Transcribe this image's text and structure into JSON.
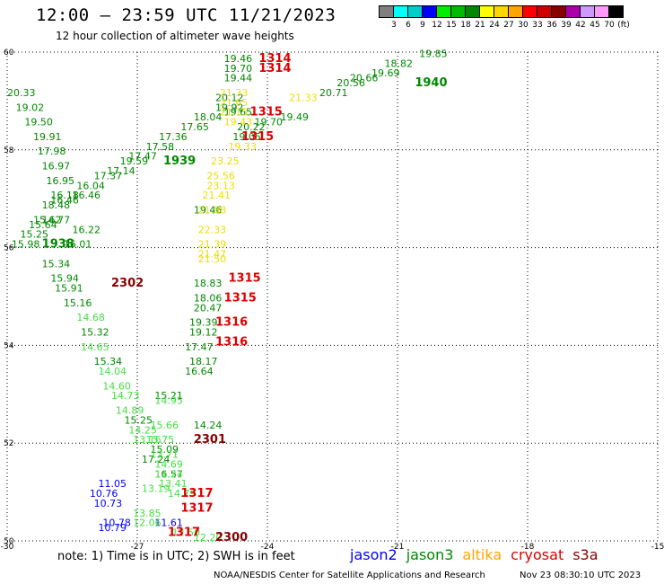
{
  "title": "12:00 — 23:59 UTC 11/21/2023",
  "subtitle": "12 hour collection of altimeter wave heights",
  "legend": {
    "colors": [
      "#7f7f7f",
      "#00ffff",
      "#00cccc",
      "#0000ff",
      "#00ee00",
      "#00bb00",
      "#008800",
      "#ffff00",
      "#ffd700",
      "#ffa500",
      "#ff0000",
      "#cc0000",
      "#880000",
      "#aa00aa",
      "#cc99ff",
      "#ff99ff",
      "#000000"
    ],
    "labels": [
      "3",
      "6",
      "9",
      "12",
      "15",
      "18",
      "21",
      "24",
      "27",
      "30",
      "33",
      "36",
      "39",
      "42",
      "45",
      "70",
      "(ft)"
    ]
  },
  "note": "note: 1) Time is in UTC; 2) SWH is in feet",
  "missions": [
    {
      "name": "jason2",
      "color": "#0000ff"
    },
    {
      "name": "jason3",
      "color": "#008800"
    },
    {
      "name": "altika",
      "color": "#ffa500"
    },
    {
      "name": "cryosat",
      "color": "#dd0000"
    },
    {
      "name": "s3a",
      "color": "#880000"
    }
  ],
  "credit": "NOAA/NESDIS Center for Satellite Applications and Research",
  "timestamp": "Nov 23 08:30:10 UTC 2023",
  "chart_data": {
    "type": "scatter",
    "xlim": [
      -30,
      -15
    ],
    "ylim": [
      50,
      60
    ],
    "xticks": [
      "-30",
      "-27",
      "-24",
      "-21",
      "-18",
      "-15"
    ],
    "yticks": [
      "50",
      "52",
      "54",
      "56",
      "58",
      "60"
    ],
    "grid": true,
    "wave_labels": [
      {
        "lon": -27.9,
        "lat": 51.1,
        "text": "11.05",
        "color": "#0000ff"
      },
      {
        "lon": -28.1,
        "lat": 50.9,
        "text": "10.76",
        "color": "#0000ff"
      },
      {
        "lon": -28.0,
        "lat": 50.7,
        "text": "10.73",
        "color": "#0000ff"
      },
      {
        "lon": -27.8,
        "lat": 50.3,
        "text": "10.78",
        "color": "#0000ff"
      },
      {
        "lon": -27.9,
        "lat": 50.2,
        "text": "10.79",
        "color": "#0000ff"
      },
      {
        "lon": -26.6,
        "lat": 50.3,
        "text": "11.61",
        "color": "#0000ff"
      },
      {
        "lon": -30.0,
        "lat": 59.1,
        "text": "20.33",
        "color": "#008800"
      },
      {
        "lon": -29.8,
        "lat": 58.8,
        "text": "19.02",
        "color": "#008800"
      },
      {
        "lon": -29.6,
        "lat": 58.5,
        "text": "19.50",
        "color": "#008800"
      },
      {
        "lon": -29.4,
        "lat": 58.2,
        "text": "19.91",
        "color": "#008800"
      },
      {
        "lon": -29.3,
        "lat": 57.9,
        "text": "17.98",
        "color": "#008800"
      },
      {
        "lon": -29.2,
        "lat": 57.6,
        "text": "16.97",
        "color": "#008800"
      },
      {
        "lon": -29.1,
        "lat": 57.3,
        "text": "16.95",
        "color": "#008800"
      },
      {
        "lon": -29.0,
        "lat": 57.0,
        "text": "16.18",
        "color": "#008800"
      },
      {
        "lon": -28.5,
        "lat": 57.0,
        "text": "16.46",
        "color": "#008800"
      },
      {
        "lon": -28.4,
        "lat": 57.2,
        "text": "16.04",
        "color": "#008800"
      },
      {
        "lon": -28.0,
        "lat": 57.4,
        "text": "17.37",
        "color": "#008800"
      },
      {
        "lon": -27.7,
        "lat": 57.5,
        "text": "17.14",
        "color": "#008800"
      },
      {
        "lon": -27.2,
        "lat": 57.8,
        "text": "17.47",
        "color": "#008800"
      },
      {
        "lon": -26.8,
        "lat": 58.0,
        "text": "17.58",
        "color": "#008800"
      },
      {
        "lon": -26.5,
        "lat": 58.2,
        "text": "17.36",
        "color": "#008800"
      },
      {
        "lon": -26.0,
        "lat": 58.4,
        "text": "17.65",
        "color": "#008800"
      },
      {
        "lon": -25.7,
        "lat": 58.6,
        "text": "18.04",
        "color": "#008800"
      },
      {
        "lon": -25.0,
        "lat": 58.7,
        "text": "19.65",
        "color": "#008800"
      },
      {
        "lon": -27.4,
        "lat": 57.7,
        "text": "19.59",
        "color": "#008800"
      },
      {
        "lon": -29.2,
        "lat": 56.8,
        "text": "18.48",
        "color": "#008800"
      },
      {
        "lon": -29.0,
        "lat": 56.9,
        "text": "16.46",
        "color": "#008800"
      },
      {
        "lon": -29.4,
        "lat": 56.5,
        "text": "15.62",
        "color": "#008800"
      },
      {
        "lon": -29.2,
        "lat": 56.5,
        "text": "14.77",
        "color": "#008800"
      },
      {
        "lon": -29.5,
        "lat": 56.4,
        "text": "15.64",
        "color": "#008800"
      },
      {
        "lon": -29.7,
        "lat": 56.2,
        "text": "15.25",
        "color": "#008800"
      },
      {
        "lon": -29.9,
        "lat": 56.0,
        "text": "15.98",
        "color": "#008800"
      },
      {
        "lon": -28.5,
        "lat": 56.3,
        "text": "16.22",
        "color": "#008800"
      },
      {
        "lon": -28.7,
        "lat": 56.0,
        "text": "16.01",
        "color": "#008800"
      },
      {
        "lon": -25.7,
        "lat": 56.7,
        "text": "19.46",
        "color": "#008800"
      },
      {
        "lon": -25.0,
        "lat": 59.8,
        "text": "19.46",
        "color": "#008800"
      },
      {
        "lon": -25.0,
        "lat": 59.6,
        "text": "19.70",
        "color": "#008800"
      },
      {
        "lon": -25.0,
        "lat": 59.4,
        "text": "19.44",
        "color": "#008800"
      },
      {
        "lon": -25.2,
        "lat": 59.0,
        "text": "20.12",
        "color": "#008800"
      },
      {
        "lon": -25.2,
        "lat": 58.8,
        "text": "19.92",
        "color": "#008800"
      },
      {
        "lon": -24.3,
        "lat": 58.5,
        "text": "19.70",
        "color": "#008800"
      },
      {
        "lon": -24.7,
        "lat": 58.4,
        "text": "20.22",
        "color": "#008800"
      },
      {
        "lon": -24.8,
        "lat": 58.2,
        "text": "19.05",
        "color": "#008800"
      },
      {
        "lon": -23.7,
        "lat": 58.6,
        "text": "19.49",
        "color": "#008800"
      },
      {
        "lon": -22.8,
        "lat": 59.1,
        "text": "20.71",
        "color": "#008800"
      },
      {
        "lon": -22.4,
        "lat": 59.3,
        "text": "20.56",
        "color": "#008800"
      },
      {
        "lon": -22.1,
        "lat": 59.4,
        "text": "20.66",
        "color": "#008800"
      },
      {
        "lon": -21.6,
        "lat": 59.5,
        "text": "19.69",
        "color": "#008800"
      },
      {
        "lon": -21.3,
        "lat": 59.7,
        "text": "18.82",
        "color": "#008800"
      },
      {
        "lon": -20.5,
        "lat": 59.9,
        "text": "19.85",
        "color": "#008800"
      },
      {
        "lon": -25.7,
        "lat": 55.2,
        "text": "18.83",
        "color": "#008800"
      },
      {
        "lon": -25.7,
        "lat": 54.9,
        "text": "18.06",
        "color": "#008800"
      },
      {
        "lon": -25.7,
        "lat": 54.7,
        "text": "20.47",
        "color": "#008800"
      },
      {
        "lon": -25.8,
        "lat": 54.4,
        "text": "19.39",
        "color": "#008800"
      },
      {
        "lon": -25.8,
        "lat": 54.2,
        "text": "19.12",
        "color": "#008800"
      },
      {
        "lon": -25.9,
        "lat": 53.9,
        "text": "17.47",
        "color": "#008800"
      },
      {
        "lon": -25.8,
        "lat": 53.6,
        "text": "18.17",
        "color": "#008800"
      },
      {
        "lon": -25.9,
        "lat": 53.4,
        "text": "16.64",
        "color": "#008800"
      },
      {
        "lon": -25.7,
        "lat": 52.3,
        "text": "14.24",
        "color": "#008800"
      },
      {
        "lon": -26.9,
        "lat": 51.6,
        "text": "17.24",
        "color": "#008800"
      },
      {
        "lon": -26.6,
        "lat": 51.3,
        "text": "16.57",
        "color": "#008800"
      },
      {
        "lon": -29.2,
        "lat": 55.6,
        "text": "15.34",
        "color": "#008800"
      },
      {
        "lon": -29.0,
        "lat": 55.3,
        "text": "15.94",
        "color": "#008800"
      },
      {
        "lon": -28.9,
        "lat": 55.1,
        "text": "15.91",
        "color": "#008800"
      },
      {
        "lon": -28.7,
        "lat": 54.8,
        "text": "15.16",
        "color": "#008800"
      },
      {
        "lon": -28.4,
        "lat": 54.5,
        "text": "14.68",
        "color": "#44dd44"
      },
      {
        "lon": -28.3,
        "lat": 54.2,
        "text": "15.32",
        "color": "#008800"
      },
      {
        "lon": -28.3,
        "lat": 53.9,
        "text": "14.65",
        "color": "#44dd44"
      },
      {
        "lon": -28.0,
        "lat": 53.6,
        "text": "15.34",
        "color": "#008800"
      },
      {
        "lon": -27.9,
        "lat": 53.4,
        "text": "14.04",
        "color": "#44dd44"
      },
      {
        "lon": -27.8,
        "lat": 53.1,
        "text": "14.60",
        "color": "#44dd44"
      },
      {
        "lon": -27.6,
        "lat": 52.9,
        "text": "14.73",
        "color": "#44dd44"
      },
      {
        "lon": -27.5,
        "lat": 52.6,
        "text": "14.89",
        "color": "#44dd44"
      },
      {
        "lon": -27.3,
        "lat": 52.4,
        "text": "15.25",
        "color": "#008800"
      },
      {
        "lon": -27.2,
        "lat": 52.2,
        "text": "14.25",
        "color": "#44dd44"
      },
      {
        "lon": -26.7,
        "lat": 52.3,
        "text": "15.66",
        "color": "#44dd44"
      },
      {
        "lon": -26.8,
        "lat": 52.0,
        "text": "15.75",
        "color": "#44dd44"
      },
      {
        "lon": -27.1,
        "lat": 52.0,
        "text": "13.16",
        "color": "#44dd44"
      },
      {
        "lon": -26.7,
        "lat": 51.8,
        "text": "15.09",
        "color": "#008800"
      },
      {
        "lon": -26.7,
        "lat": 51.7,
        "text": "13.71",
        "color": "#44dd44"
      },
      {
        "lon": -26.6,
        "lat": 52.9,
        "text": "15.21",
        "color": "#008800"
      },
      {
        "lon": -26.6,
        "lat": 52.8,
        "text": "14.95",
        "color": "#44dd44"
      },
      {
        "lon": -26.6,
        "lat": 51.5,
        "text": "14.69",
        "color": "#44dd44"
      },
      {
        "lon": -26.6,
        "lat": 51.3,
        "text": "14.24",
        "color": "#44dd44"
      },
      {
        "lon": -26.5,
        "lat": 51.1,
        "text": "13.41",
        "color": "#44dd44"
      },
      {
        "lon": -26.3,
        "lat": 50.9,
        "text": "14.79",
        "color": "#44dd44"
      },
      {
        "lon": -26.9,
        "lat": 51.0,
        "text": "13.19",
        "color": "#44dd44"
      },
      {
        "lon": -27.1,
        "lat": 50.5,
        "text": "13.85",
        "color": "#44dd44"
      },
      {
        "lon": -27.1,
        "lat": 50.3,
        "text": "12.06",
        "color": "#44dd44"
      },
      {
        "lon": -26.2,
        "lat": 50.1,
        "text": "12.50",
        "color": "#44dd44"
      },
      {
        "lon": -25.7,
        "lat": 50.0,
        "text": "12.20",
        "color": "#44dd44"
      },
      {
        "lon": -25.1,
        "lat": 59.1,
        "text": "21.33",
        "color": "#eedd00"
      },
      {
        "lon": -25.1,
        "lat": 58.9,
        "text": "21.65",
        "color": "#eedd00"
      },
      {
        "lon": -25.1,
        "lat": 58.7,
        "text": "21.15",
        "color": "#eedd00"
      },
      {
        "lon": -25.0,
        "lat": 58.5,
        "text": "19.43",
        "color": "#eedd00"
      },
      {
        "lon": -23.5,
        "lat": 59.0,
        "text": "21.33",
        "color": "#eedd00"
      },
      {
        "lon": -24.9,
        "lat": 58.0,
        "text": "19.33",
        "color": "#eedd00"
      },
      {
        "lon": -25.3,
        "lat": 57.7,
        "text": "23.25",
        "color": "#eedd00"
      },
      {
        "lon": -25.4,
        "lat": 57.4,
        "text": "25.56",
        "color": "#eedd00"
      },
      {
        "lon": -25.4,
        "lat": 57.2,
        "text": "23.13",
        "color": "#eedd00"
      },
      {
        "lon": -25.5,
        "lat": 57.0,
        "text": "21.41",
        "color": "#eedd00"
      },
      {
        "lon": -25.6,
        "lat": 56.7,
        "text": "21.88",
        "color": "#eedd00"
      },
      {
        "lon": -25.6,
        "lat": 56.3,
        "text": "22.33",
        "color": "#eedd00"
      },
      {
        "lon": -25.6,
        "lat": 56.0,
        "text": "21.39",
        "color": "#eedd00"
      },
      {
        "lon": -25.6,
        "lat": 55.8,
        "text": "21.47",
        "color": "#eedd00"
      },
      {
        "lon": -25.6,
        "lat": 55.7,
        "text": "21.50",
        "color": "#eedd00"
      }
    ],
    "satellite_time_labels": [
      {
        "lon": -24.2,
        "lat": 59.8,
        "text": "1314",
        "color": "#dd0000"
      },
      {
        "lon": -24.2,
        "lat": 59.6,
        "text": "1314",
        "color": "#dd0000"
      },
      {
        "lon": -24.4,
        "lat": 58.7,
        "text": "1315",
        "color": "#dd0000"
      },
      {
        "lon": -24.6,
        "lat": 58.2,
        "text": "1315",
        "color": "#dd0000"
      },
      {
        "lon": -24.9,
        "lat": 55.3,
        "text": "1315",
        "color": "#dd0000"
      },
      {
        "lon": -25.0,
        "lat": 54.9,
        "text": "1315",
        "color": "#dd0000"
      },
      {
        "lon": -25.2,
        "lat": 54.4,
        "text": "1316",
        "color": "#dd0000"
      },
      {
        "lon": -25.2,
        "lat": 54.0,
        "text": "1316",
        "color": "#dd0000"
      },
      {
        "lon": -26.0,
        "lat": 50.9,
        "text": "1317",
        "color": "#dd0000"
      },
      {
        "lon": -26.0,
        "lat": 50.6,
        "text": "1317",
        "color": "#dd0000"
      },
      {
        "lon": -26.3,
        "lat": 50.1,
        "text": "1317",
        "color": "#dd0000"
      },
      {
        "lon": -27.6,
        "lat": 55.2,
        "text": "2302",
        "color": "#880000"
      },
      {
        "lon": -25.7,
        "lat": 52.0,
        "text": "2301",
        "color": "#880000"
      },
      {
        "lon": -25.2,
        "lat": 50.0,
        "text": "2300",
        "color": "#880000"
      },
      {
        "lon": -20.6,
        "lat": 59.3,
        "text": "1940",
        "color": "#008800"
      },
      {
        "lon": -26.4,
        "lat": 57.7,
        "text": "1939",
        "color": "#008800"
      },
      {
        "lon": -29.2,
        "lat": 56.0,
        "text": "1938",
        "color": "#008800"
      }
    ]
  }
}
